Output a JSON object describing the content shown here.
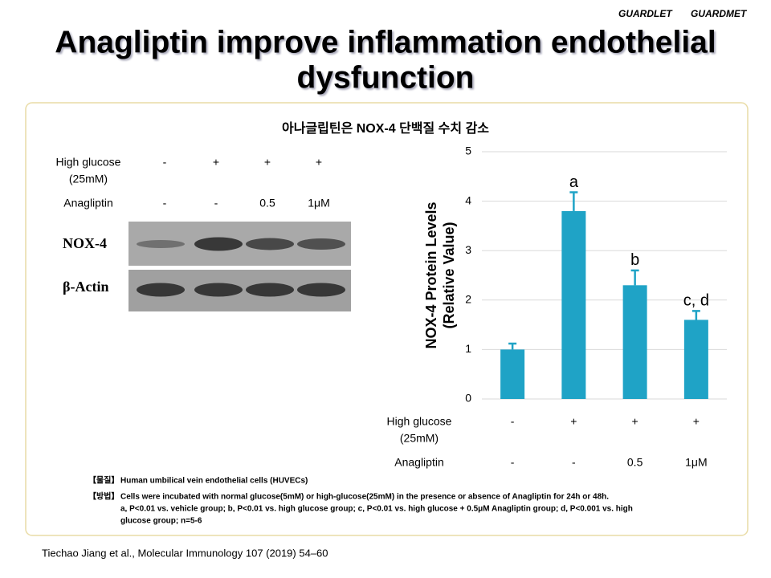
{
  "header": {
    "brands": [
      "GUARDLET",
      "GUARDMET"
    ],
    "title_lines": [
      "Anagliptin improve inflammation endothelial",
      "dysfunction"
    ]
  },
  "panel_title": "아나글립틴은 NOX-4 단백질 수치 감소",
  "blot": {
    "conditions": [
      {
        "name": "High glucose",
        "unit": "(25mM)",
        "labels": [
          "-",
          "+",
          "+",
          "+"
        ]
      },
      {
        "name": "Anagliptin",
        "labels": [
          "-",
          "-",
          "0.5",
          "1μM"
        ]
      }
    ],
    "bands": [
      "NOX-4",
      "β-Actin"
    ]
  },
  "chart_data": {
    "type": "bar",
    "ylabel": [
      "NOX-4 Protein Levels",
      "(Relative Value)"
    ],
    "categories": [
      null,
      null,
      null,
      null
    ],
    "conditions": [
      {
        "name": "High glucose",
        "unit": "(25mM)",
        "labels": [
          "-",
          "+",
          "+",
          "+"
        ]
      },
      {
        "name": "Anagliptin",
        "labels": [
          "-",
          "-",
          "0.5",
          "1μM"
        ]
      }
    ],
    "values": [
      1.0,
      3.8,
      2.3,
      1.6
    ],
    "errors": [
      0.12,
      0.38,
      0.3,
      0.18
    ],
    "annotations": [
      null,
      "a",
      "b",
      "c, d"
    ],
    "color": "#1fa3c6",
    "ylim": [
      0,
      5
    ],
    "yticks": [
      0,
      1,
      2,
      3,
      4,
      5
    ],
    "grid": true
  },
  "notes": [
    {
      "tag": "【물질】",
      "lines": [
        "Human umbilical vein endothelial cells (HUVECs)"
      ]
    },
    {
      "tag": "【방법】",
      "lines": [
        "Cells were incubated with normal glucose(5mM) or high-glucose(25mM) in the presence or absence of Anagliptin for 24h or 48h.",
        "a, P<0.01 vs. vehicle group; b, P<0.01 vs. high glucose group; c, P<0.01 vs. high glucose + 0.5μM Anagliptin group; d, P<0.001 vs. high",
        "glucose group; n=5-6"
      ]
    }
  ],
  "citation": "Tiechao Jiang et al., Molecular Immunology 107 (2019) 54–60"
}
